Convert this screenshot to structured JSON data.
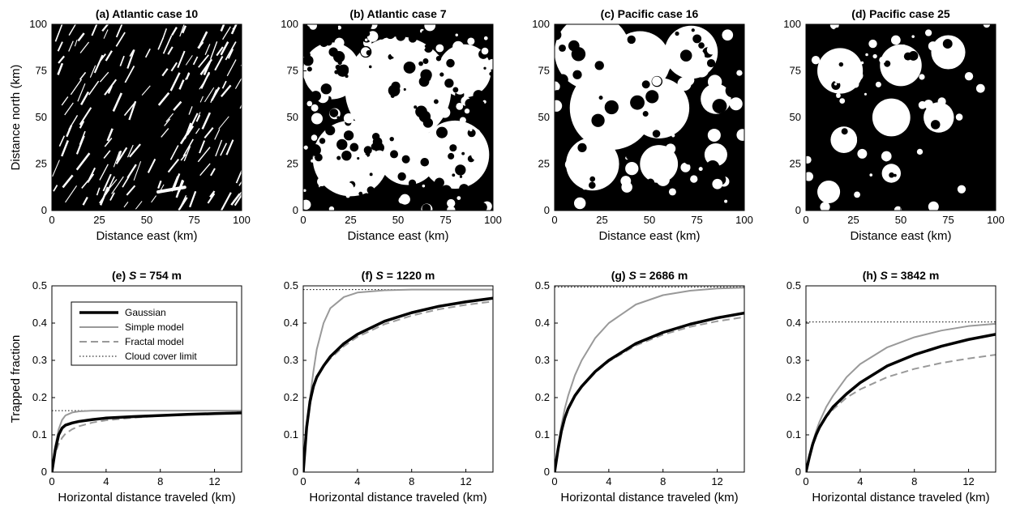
{
  "figure": {
    "top_panels": [
      {
        "title": "(a) Atlantic case 10",
        "kind": "streaky"
      },
      {
        "title": "(b) Atlantic case 7",
        "kind": "speckled"
      },
      {
        "title": "(c) Pacific case 16",
        "kind": "blobby"
      },
      {
        "title": "(d) Pacific case 25",
        "kind": "sparse"
      }
    ],
    "top_axes": {
      "xlabel": "Distance east (km)",
      "ylabel": "Distance north (km)",
      "xlim": [
        0,
        100
      ],
      "ylim": [
        0,
        100
      ],
      "xticks": [
        "0",
        "25",
        "50",
        "75",
        "100"
      ],
      "yticks": [
        "0",
        "25",
        "50",
        "75",
        "100"
      ]
    },
    "bottom_axes": {
      "xlabel": "Horizontal distance traveled (km)",
      "ylabel": "Trapped fraction",
      "xlim": [
        0,
        14
      ],
      "ylim": [
        0,
        0.5
      ],
      "xticks": [
        "0",
        "4",
        "8",
        "12"
      ],
      "yticks": [
        "0",
        "0.1",
        "0.2",
        "0.3",
        "0.4",
        "0.5"
      ]
    },
    "legend": {
      "entries": [
        "Gaussian",
        "Simple model",
        "Fractal model",
        "Cloud cover limit"
      ],
      "colors": [
        "#000000",
        "#999999",
        "#999999",
        "#000000"
      ]
    }
  },
  "chart_data": [
    {
      "type": "line",
      "title_prefix": "(e) ",
      "title_var": "S",
      "title_suffix": " = 754 m",
      "cloud_cover_limit": 0.165,
      "x": [
        0,
        0.25,
        0.5,
        0.75,
        1,
        1.5,
        2,
        3,
        4,
        6,
        8,
        10,
        12,
        14
      ],
      "series": [
        {
          "name": "Gaussian",
          "values": [
            0,
            0.06,
            0.1,
            0.118,
            0.126,
            0.132,
            0.136,
            0.141,
            0.145,
            0.149,
            0.152,
            0.155,
            0.157,
            0.159
          ]
        },
        {
          "name": "Simple model",
          "values": [
            0,
            0.07,
            0.115,
            0.14,
            0.152,
            0.16,
            0.163,
            0.165,
            0.165,
            0.165,
            0.165,
            0.165,
            0.165,
            0.165
          ]
        },
        {
          "name": "Fractal model",
          "values": [
            0,
            0.05,
            0.075,
            0.092,
            0.103,
            0.115,
            0.123,
            0.133,
            0.139,
            0.146,
            0.151,
            0.155,
            0.158,
            0.161
          ]
        }
      ]
    },
    {
      "type": "line",
      "title_prefix": "(f) ",
      "title_var": "S",
      "title_suffix": " = 1220 m",
      "cloud_cover_limit": 0.49,
      "x": [
        0,
        0.25,
        0.5,
        0.75,
        1,
        1.5,
        2,
        3,
        4,
        6,
        8,
        10,
        12,
        14
      ],
      "series": [
        {
          "name": "Gaussian",
          "values": [
            0,
            0.12,
            0.19,
            0.23,
            0.255,
            0.285,
            0.31,
            0.345,
            0.37,
            0.405,
            0.428,
            0.445,
            0.457,
            0.467
          ]
        },
        {
          "name": "Simple model",
          "values": [
            0,
            0.12,
            0.2,
            0.27,
            0.33,
            0.4,
            0.44,
            0.47,
            0.482,
            0.488,
            0.49,
            0.49,
            0.49,
            0.49
          ]
        },
        {
          "name": "Fractal model",
          "values": [
            0,
            0.11,
            0.18,
            0.225,
            0.252,
            0.283,
            0.305,
            0.338,
            0.363,
            0.397,
            0.42,
            0.437,
            0.449,
            0.458
          ]
        }
      ]
    },
    {
      "type": "line",
      "title_prefix": "(g) ",
      "title_var": "S",
      "title_suffix": " = 2686 m",
      "cloud_cover_limit": 0.497,
      "x": [
        0,
        0.25,
        0.5,
        0.75,
        1,
        1.5,
        2,
        3,
        4,
        6,
        8,
        10,
        12,
        14
      ],
      "series": [
        {
          "name": "Gaussian",
          "values": [
            0,
            0.06,
            0.11,
            0.145,
            0.17,
            0.205,
            0.23,
            0.27,
            0.3,
            0.345,
            0.375,
            0.397,
            0.414,
            0.427
          ]
        },
        {
          "name": "Simple model",
          "values": [
            0,
            0.07,
            0.125,
            0.17,
            0.205,
            0.26,
            0.3,
            0.36,
            0.4,
            0.45,
            0.475,
            0.487,
            0.493,
            0.495
          ]
        },
        {
          "name": "Fractal model",
          "values": [
            0,
            0.06,
            0.11,
            0.143,
            0.168,
            0.203,
            0.228,
            0.267,
            0.297,
            0.34,
            0.369,
            0.39,
            0.405,
            0.416
          ]
        }
      ]
    },
    {
      "type": "line",
      "title_prefix": "(h) ",
      "title_var": "S",
      "title_suffix": " = 3842 m",
      "cloud_cover_limit": 0.403,
      "x": [
        0,
        0.25,
        0.5,
        0.75,
        1,
        1.5,
        2,
        3,
        4,
        6,
        8,
        10,
        12,
        14
      ],
      "series": [
        {
          "name": "Gaussian",
          "values": [
            0,
            0.04,
            0.075,
            0.1,
            0.12,
            0.15,
            0.175,
            0.21,
            0.24,
            0.285,
            0.315,
            0.338,
            0.356,
            0.37
          ]
        },
        {
          "name": "Simple model",
          "values": [
            0,
            0.045,
            0.08,
            0.11,
            0.135,
            0.175,
            0.205,
            0.255,
            0.29,
            0.335,
            0.362,
            0.38,
            0.392,
            0.398
          ]
        },
        {
          "name": "Fractal model",
          "values": [
            0,
            0.04,
            0.075,
            0.1,
            0.12,
            0.148,
            0.168,
            0.2,
            0.222,
            0.255,
            0.277,
            0.293,
            0.305,
            0.315
          ]
        }
      ]
    }
  ]
}
